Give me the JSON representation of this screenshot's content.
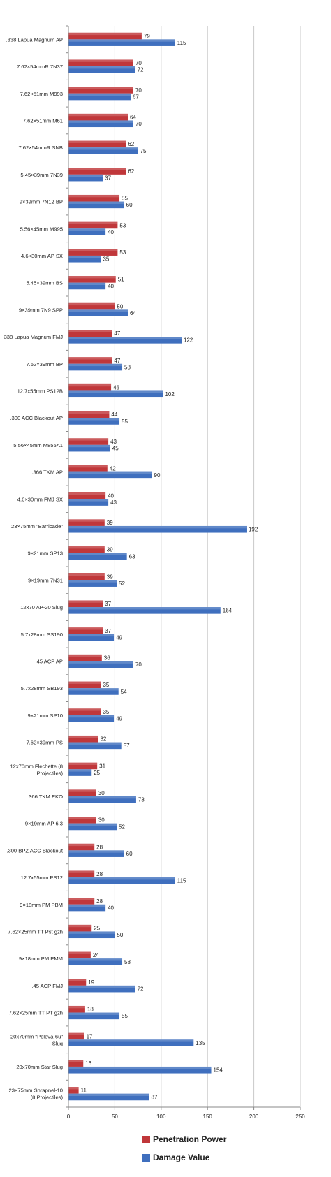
{
  "chart_data": {
    "type": "bar",
    "orientation": "horizontal",
    "categories": [
      ".338 Lapua Magnum AP",
      "7.62×54mmR 7N37",
      "7.62×51mm M993",
      "7.62×51mm M61",
      "7.62×54mmR SNB",
      "5.45×39mm 7N39",
      "9×39mm 7N12 BP",
      "5.56×45mm M995",
      "4.6×30mm AP SX",
      "5.45×39mm BS",
      "9×39mm 7N9 SPP",
      ".338 Lapua Magnum FMJ",
      "7.62×39mm BP",
      "12.7x55mm PS12B",
      ".300 ACC Blackout AP",
      "5.56×45mm M855A1",
      ".366 TKM AP",
      "4.6×30mm FMJ SX",
      "23×75mm \"Barricade\"",
      "9×21mm SP13",
      "9×19mm 7N31",
      "12x70 AP-20 Slug",
      "5.7x28mm SS190",
      ".45 ACP AP",
      "5.7x28mm SB193",
      "9×21mm SP10",
      "7.62×39mm PS",
      "12x70mm Flechette (8 Projectiles)",
      ".366 TKM EKO",
      "9×19mm AP 6.3",
      ".300 BPZ ACC Blackout",
      "12.7x55mm PS12",
      "9×18mm PM PBM",
      "7.62×25mm TT Pst gzh",
      "9×18mm PM PMM",
      ".45 ACP FMJ",
      "7.62×25mm TT PT gzh",
      "20x70mm \"Poleva-6u\" Slug",
      "20x70mm Star Slug",
      "23×75mm Shrapnel-10 (8 Projectiles)"
    ],
    "series": [
      {
        "name": "Penetration Power",
        "color": "#c0373a",
        "values": [
          79,
          70,
          70,
          64,
          62,
          62,
          55,
          53,
          53,
          51,
          50,
          47,
          47,
          46,
          44,
          43,
          42,
          40,
          39,
          39,
          39,
          37,
          37,
          36,
          35,
          35,
          32,
          31,
          30,
          30,
          28,
          28,
          28,
          25,
          24,
          19,
          18,
          17,
          16,
          11
        ]
      },
      {
        "name": "Damage Value",
        "color": "#3f6fbe",
        "values": [
          115,
          72,
          67,
          70,
          75,
          37,
          60,
          40,
          35,
          40,
          64,
          122,
          58,
          102,
          55,
          45,
          90,
          43,
          192,
          63,
          52,
          164,
          49,
          70,
          54,
          49,
          57,
          25,
          73,
          52,
          60,
          115,
          40,
          50,
          58,
          72,
          55,
          135,
          154,
          87
        ]
      }
    ],
    "xlim": [
      0,
      250
    ],
    "xticks": [
      "0",
      "50",
      "100",
      "150",
      "200",
      "250"
    ],
    "grid": "vertical",
    "legend": "bottom",
    "title": "",
    "xlabel": "",
    "ylabel": ""
  }
}
